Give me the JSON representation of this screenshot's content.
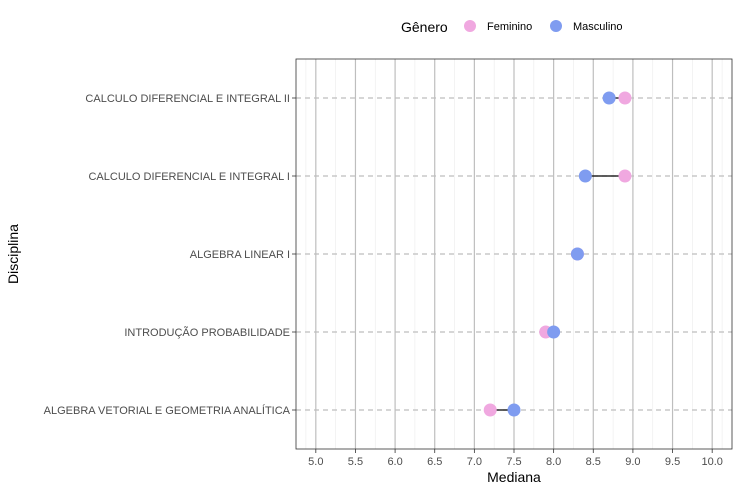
{
  "chart_data": {
    "type": "scatter",
    "subtype": "dumbbell",
    "title": "",
    "xlabel": "Mediana",
    "ylabel": "Disciplina",
    "xlim": [
      4.75,
      10.25
    ],
    "x_ticks": [
      "5.0",
      "5.5",
      "6.0",
      "6.5",
      "7.0",
      "7.5",
      "8.0",
      "8.5",
      "9.0",
      "9.5",
      "10.0"
    ],
    "grid": true,
    "legend": {
      "title": "Gênero",
      "position": "top"
    },
    "categories": [
      "CALCULO DIFERENCIAL E INTEGRAL II",
      "CALCULO DIFERENCIAL E INTEGRAL I",
      "ALGEBRA LINEAR I",
      "INTRODUÇÃO  PROBABILIDADE",
      "ALGEBRA VETORIAL E GEOMETRIA ANALÍTICA"
    ],
    "series": [
      {
        "name": "Feminino",
        "color": "#f0a8e0",
        "values": [
          8.9,
          8.9,
          8.3,
          7.9,
          7.2
        ]
      },
      {
        "name": "Masculino",
        "color": "#7f9cf0",
        "values": [
          8.7,
          8.4,
          8.3,
          8.0,
          7.5
        ]
      }
    ]
  }
}
